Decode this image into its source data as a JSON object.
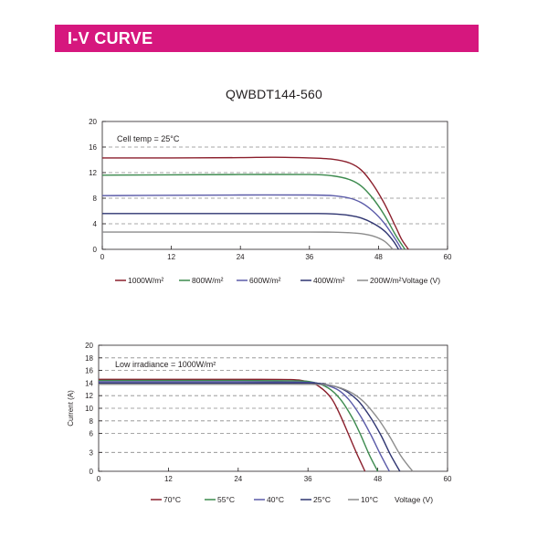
{
  "banner": {
    "title": "I-V CURVE",
    "color": "#d6177e"
  },
  "model": "QWBDT144-560",
  "chart_data": [
    {
      "type": "line",
      "annotation": "Cell temp = 25°C",
      "xlabel": "Voltage (V)",
      "ylabel": "",
      "xlim": [
        0,
        60
      ],
      "ylim": [
        0,
        20
      ],
      "xticks": [
        0,
        12,
        24,
        36,
        48,
        60
      ],
      "yticks": [
        0,
        4,
        8,
        12,
        16,
        20
      ],
      "gridlines_y": [
        4,
        8,
        12,
        16
      ],
      "legend_position": "bottom",
      "series": [
        {
          "name": "1000W/m²",
          "color": "#8b1f2c",
          "x": [
            0,
            12,
            24,
            30,
            36,
            40,
            43,
            45,
            47,
            49,
            51,
            52,
            53.2
          ],
          "y": [
            14.3,
            14.3,
            14.35,
            14.4,
            14.3,
            14.1,
            13.5,
            12.4,
            10.2,
            7.2,
            3.5,
            1.6,
            0
          ]
        },
        {
          "name": "800W/m²",
          "color": "#3c8a4e",
          "x": [
            0,
            12,
            24,
            36,
            40,
            43,
            45,
            47,
            49,
            51,
            52.6
          ],
          "y": [
            11.6,
            11.65,
            11.7,
            11.7,
            11.5,
            10.9,
            9.9,
            8.0,
            5.4,
            2.2,
            0
          ]
        },
        {
          "name": "600W/m²",
          "color": "#5a5aa8",
          "x": [
            0,
            12,
            24,
            36,
            40,
            43,
            45,
            47,
            49,
            51,
            52.0
          ],
          "y": [
            8.4,
            8.45,
            8.5,
            8.5,
            8.4,
            8.0,
            7.3,
            6.0,
            4.1,
            1.5,
            0
          ]
        },
        {
          "name": "400W/m²",
          "color": "#2e3470",
          "x": [
            0,
            12,
            24,
            36,
            40,
            43,
            45,
            47,
            49,
            50.5,
            51.5
          ],
          "y": [
            5.6,
            5.6,
            5.6,
            5.6,
            5.55,
            5.3,
            4.9,
            4.1,
            2.9,
            1.4,
            0
          ]
        },
        {
          "name": "200W/m²",
          "color": "#8c8c8c",
          "x": [
            0,
            12,
            24,
            36,
            40,
            43,
            45,
            47,
            49,
            50.5
          ],
          "y": [
            2.7,
            2.7,
            2.7,
            2.7,
            2.68,
            2.6,
            2.45,
            2.1,
            1.3,
            0
          ]
        }
      ]
    },
    {
      "type": "line",
      "annotation": "Low irradiance = 1000W/m²",
      "xlabel": "Voltage (V)",
      "ylabel": "Current (A)",
      "xlim": [
        0,
        60
      ],
      "ylim": [
        0,
        20
      ],
      "xticks": [
        0,
        12,
        24,
        36,
        48,
        60
      ],
      "yticks": [
        0,
        3,
        6,
        8,
        10,
        12,
        14,
        16,
        18,
        20
      ],
      "gridlines_y": [
        3,
        6,
        8,
        10,
        12,
        14,
        16,
        18
      ],
      "legend_position": "bottom",
      "series": [
        {
          "name": "70°C",
          "color": "#8b1f2c",
          "x": [
            0,
            12,
            24,
            33,
            36,
            38,
            40,
            41.5,
            43,
            44.5,
            45.8
          ],
          "y": [
            14.6,
            14.6,
            14.6,
            14.55,
            14.2,
            13.4,
            11.6,
            9.0,
            5.8,
            2.6,
            0
          ]
        },
        {
          "name": "55°C",
          "color": "#3c8a4e",
          "x": [
            0,
            12,
            24,
            34,
            37,
            39.5,
            41.5,
            43.5,
            45,
            46.5,
            48.0
          ],
          "y": [
            14.4,
            14.4,
            14.4,
            14.35,
            14.1,
            13.2,
            11.5,
            8.7,
            5.9,
            2.7,
            0
          ]
        },
        {
          "name": "40°C",
          "color": "#5a5aa8",
          "x": [
            0,
            12,
            24,
            35,
            38,
            41,
            43,
            45,
            46.8,
            48.5,
            50.0
          ],
          "y": [
            14.2,
            14.2,
            14.2,
            14.15,
            13.9,
            13.0,
            11.4,
            8.8,
            5.8,
            2.6,
            0
          ]
        },
        {
          "name": "25°C",
          "color": "#2e3470",
          "x": [
            0,
            12,
            24,
            36,
            39,
            42,
            44.5,
            46.5,
            48.5,
            50.2,
            51.8
          ],
          "y": [
            14.0,
            14.0,
            14.0,
            14.0,
            13.8,
            13.0,
            11.3,
            8.9,
            5.8,
            2.6,
            0
          ]
        },
        {
          "name": "10°C",
          "color": "#8c8c8c",
          "x": [
            0,
            12,
            24,
            36,
            40,
            43,
            45.5,
            48,
            50,
            52,
            54.0
          ],
          "y": [
            13.8,
            13.8,
            13.8,
            13.8,
            13.6,
            12.7,
            11.1,
            8.4,
            5.6,
            2.4,
            0
          ]
        }
      ]
    }
  ]
}
